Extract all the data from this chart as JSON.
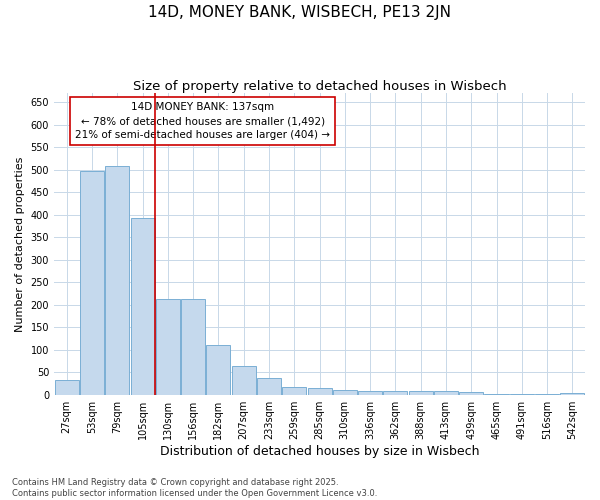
{
  "title": "14D, MONEY BANK, WISBECH, PE13 2JN",
  "subtitle": "Size of property relative to detached houses in Wisbech",
  "xlabel": "Distribution of detached houses by size in Wisbech",
  "ylabel": "Number of detached properties",
  "categories": [
    "27sqm",
    "53sqm",
    "79sqm",
    "105sqm",
    "130sqm",
    "156sqm",
    "182sqm",
    "207sqm",
    "233sqm",
    "259sqm",
    "285sqm",
    "310sqm",
    "336sqm",
    "362sqm",
    "388sqm",
    "413sqm",
    "439sqm",
    "465sqm",
    "491sqm",
    "516sqm",
    "542sqm"
  ],
  "values": [
    32,
    497,
    507,
    393,
    213,
    213,
    110,
    63,
    38,
    17,
    14,
    10,
    8,
    8,
    8,
    8,
    5,
    1,
    1,
    1,
    3
  ],
  "bar_color": "#c5d9ed",
  "bar_edge_color": "#7aafd4",
  "grid_color": "#c8d8e8",
  "background_color": "#ffffff",
  "annotation_line1": "14D MONEY BANK: 137sqm",
  "annotation_line2": "← 78% of detached houses are smaller (1,492)",
  "annotation_line3": "21% of semi-detached houses are larger (404) →",
  "vline_x": 4.0,
  "vline_color": "#cc0000",
  "annotation_box_color": "#ffffff",
  "annotation_box_edge": "#cc0000",
  "footer_text": "Contains HM Land Registry data © Crown copyright and database right 2025.\nContains public sector information licensed under the Open Government Licence v3.0.",
  "ylim": [
    0,
    670
  ],
  "title_fontsize": 11,
  "subtitle_fontsize": 9.5,
  "xlabel_fontsize": 9,
  "ylabel_fontsize": 8,
  "tick_fontsize": 7,
  "annotation_fontsize": 7.5,
  "footer_fontsize": 6
}
